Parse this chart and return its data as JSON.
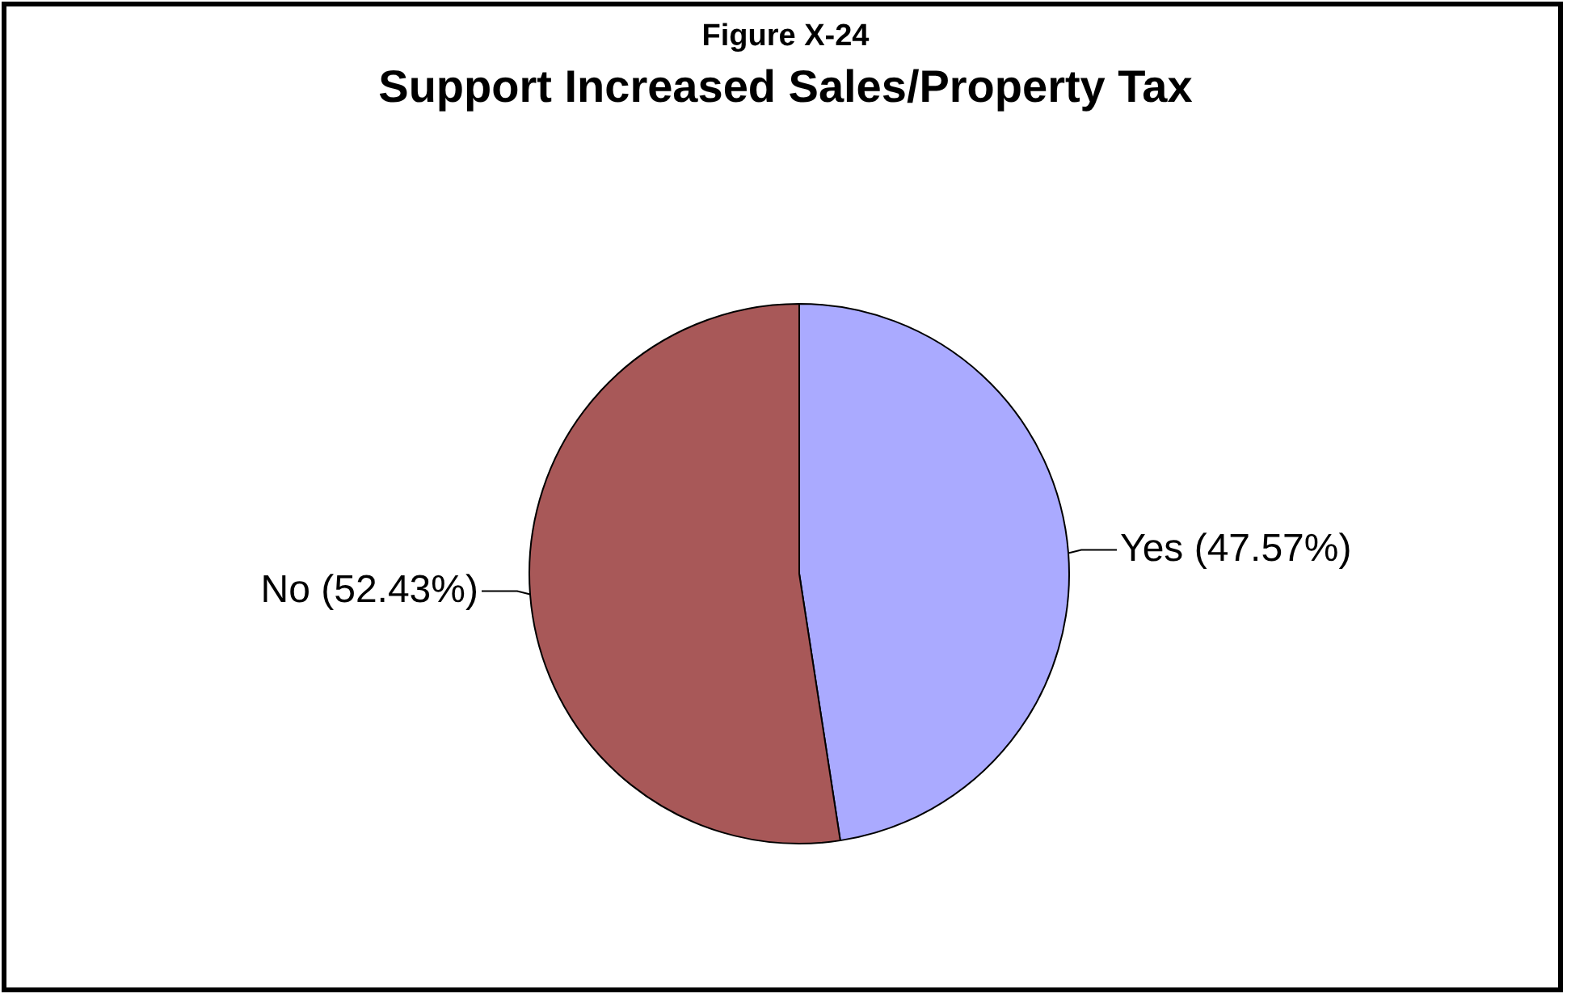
{
  "chart_data": {
    "type": "pie",
    "subtitle": "Figure X-24",
    "title": "Support Increased Sales/Property Tax",
    "categories": [
      "Yes",
      "No"
    ],
    "values": [
      47.57,
      52.43
    ],
    "colors": [
      "#aaaaff",
      "#a85858"
    ],
    "value_labels": [
      "(47.57%)",
      "(52.43%)"
    ],
    "legend": false
  }
}
